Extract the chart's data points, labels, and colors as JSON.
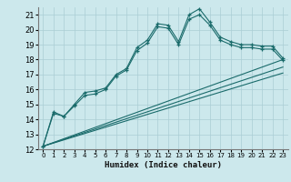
{
  "xlabel": "Humidex (Indice chaleur)",
  "bg_color": "#cce8ec",
  "grid_color": "#aacdd4",
  "line_color": "#1a6b6b",
  "xlim": [
    -0.5,
    23.5
  ],
  "ylim": [
    12,
    21.5
  ],
  "xticks": [
    0,
    1,
    2,
    3,
    4,
    5,
    6,
    7,
    8,
    9,
    10,
    11,
    12,
    13,
    14,
    15,
    16,
    17,
    18,
    19,
    20,
    21,
    22,
    23
  ],
  "yticks": [
    12,
    13,
    14,
    15,
    16,
    17,
    18,
    19,
    20,
    21
  ],
  "line1_x": [
    0,
    1,
    2,
    3,
    4,
    5,
    6,
    7,
    8,
    9,
    10,
    11,
    12,
    13,
    14,
    15,
    16,
    17,
    18,
    19,
    20,
    21,
    22,
    23
  ],
  "line1_y": [
    12.2,
    14.5,
    14.2,
    15.0,
    15.8,
    15.9,
    16.1,
    17.0,
    17.4,
    18.8,
    19.3,
    20.4,
    20.3,
    19.2,
    21.0,
    21.4,
    20.5,
    19.5,
    19.2,
    19.0,
    19.0,
    18.9,
    18.9,
    18.1
  ],
  "line2_x": [
    0,
    1,
    2,
    3,
    4,
    5,
    6,
    7,
    8,
    9,
    10,
    11,
    12,
    13,
    14,
    15,
    16,
    17,
    18,
    19,
    20,
    21,
    22,
    23
  ],
  "line2_y": [
    12.2,
    14.4,
    14.2,
    14.9,
    15.6,
    15.7,
    16.0,
    16.9,
    17.3,
    18.6,
    19.1,
    20.2,
    20.1,
    19.0,
    20.7,
    21.0,
    20.3,
    19.3,
    19.0,
    18.8,
    18.8,
    18.7,
    18.7,
    17.95
  ],
  "line3_x": [
    0,
    23
  ],
  "line3_y": [
    12.2,
    18.0
  ],
  "line4_x": [
    0,
    23
  ],
  "line4_y": [
    12.2,
    17.5
  ],
  "line5_x": [
    0,
    23
  ],
  "line5_y": [
    12.2,
    17.1
  ]
}
